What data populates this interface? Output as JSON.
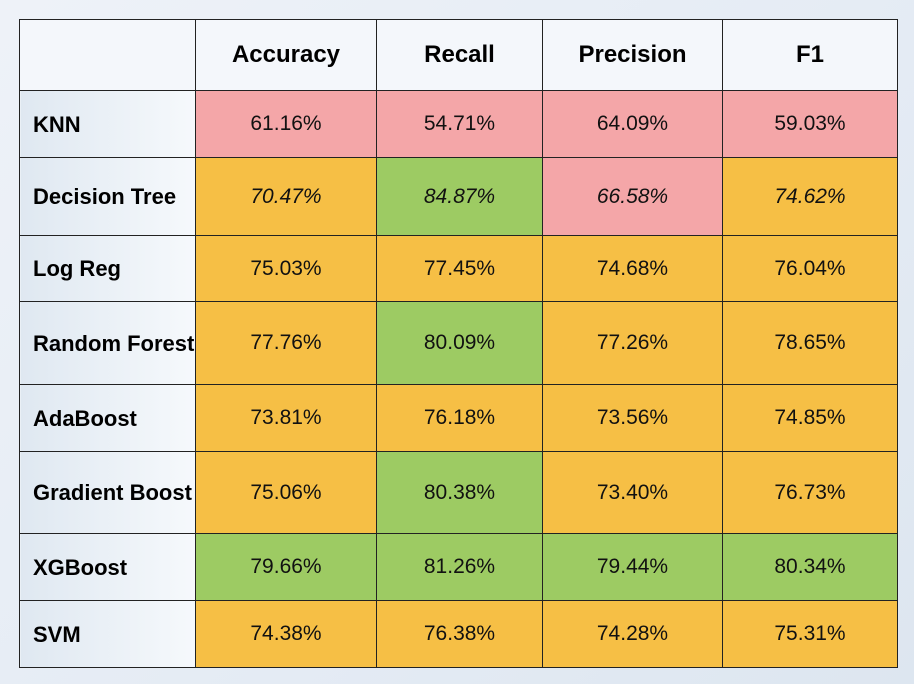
{
  "colors": {
    "red": "#f4a6a8",
    "orange": "#f6bf45",
    "green": "#9dcb63"
  },
  "chart_data": {
    "type": "table",
    "columns": [
      "Accuracy",
      "Recall",
      "Precision",
      "F1"
    ],
    "rows": [
      {
        "model": "KNN",
        "values": [
          "61.16%",
          "54.71%",
          "64.09%",
          "59.03%"
        ],
        "colors": [
          "red",
          "red",
          "red",
          "red"
        ],
        "italic": false,
        "highlight": false
      },
      {
        "model": "Decision Tree",
        "values": [
          "70.47%",
          "84.87%",
          "66.58%",
          "74.62%"
        ],
        "colors": [
          "orange",
          "green",
          "red",
          "orange"
        ],
        "italic": true,
        "highlight": false
      },
      {
        "model": "Log Reg",
        "values": [
          "75.03%",
          "77.45%",
          "74.68%",
          "76.04%"
        ],
        "colors": [
          "orange",
          "orange",
          "orange",
          "orange"
        ],
        "italic": false,
        "highlight": false
      },
      {
        "model": "Random Forest",
        "values": [
          "77.76%",
          "80.09%",
          "77.26%",
          "78.65%"
        ],
        "colors": [
          "orange",
          "green",
          "orange",
          "orange"
        ],
        "italic": false,
        "highlight": false
      },
      {
        "model": "AdaBoost",
        "values": [
          "73.81%",
          "76.18%",
          "73.56%",
          "74.85%"
        ],
        "colors": [
          "orange",
          "orange",
          "orange",
          "orange"
        ],
        "italic": false,
        "highlight": false
      },
      {
        "model": "Gradient Boost",
        "values": [
          "75.06%",
          "80.38%",
          "73.40%",
          "76.73%"
        ],
        "colors": [
          "orange",
          "green",
          "orange",
          "orange"
        ],
        "italic": false,
        "highlight": false
      },
      {
        "model": "XGBoost",
        "values": [
          "79.66%",
          "81.26%",
          "79.44%",
          "80.34%"
        ],
        "colors": [
          "green",
          "green",
          "green",
          "green"
        ],
        "italic": false,
        "highlight": true
      },
      {
        "model": "SVM",
        "values": [
          "74.38%",
          "76.38%",
          "74.28%",
          "75.31%"
        ],
        "colors": [
          "orange",
          "orange",
          "orange",
          "orange"
        ],
        "italic": false,
        "highlight": false
      }
    ]
  }
}
